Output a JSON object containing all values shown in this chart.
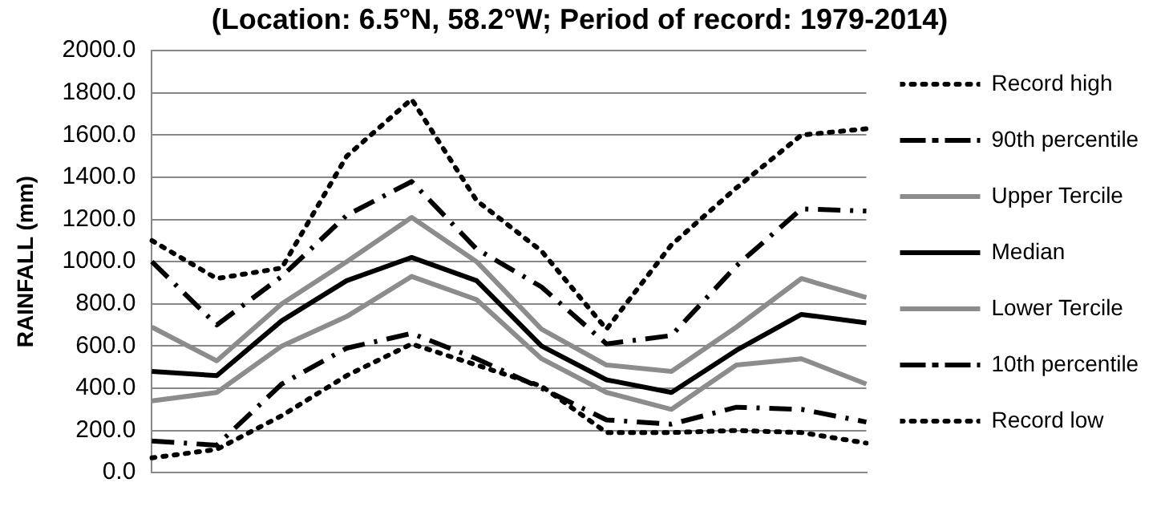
{
  "chart_data": {
    "type": "line",
    "title": "(Location: 6.5°N, 58.2°W; Period of record: 1979-2014)",
    "ylabel": "RAINFALL (mm)",
    "categories": [
      null,
      null,
      null,
      null,
      null,
      null,
      null,
      null,
      null,
      null,
      null,
      null
    ],
    "series": [
      {
        "name": "Record high",
        "color": "#000000",
        "line_style": "dotted",
        "values": [
          1100,
          920,
          970,
          1500,
          1770,
          1290,
          1050,
          680,
          1080,
          1350,
          1600,
          1630
        ]
      },
      {
        "name": "90th percentile",
        "color": "#000000",
        "line_style": "dashdot",
        "values": [
          1000,
          700,
          930,
          1220,
          1380,
          1060,
          880,
          610,
          650,
          980,
          1250,
          1240
        ]
      },
      {
        "name": "Upper Tercile",
        "color": "#8c8c8c",
        "line_style": "solid",
        "values": [
          690,
          530,
          800,
          1000,
          1210,
          1000,
          680,
          510,
          480,
          690,
          920,
          830
        ]
      },
      {
        "name": "Median",
        "color": "#000000",
        "line_style": "solid",
        "values": [
          480,
          460,
          720,
          910,
          1020,
          910,
          600,
          440,
          380,
          580,
          750,
          710
        ]
      },
      {
        "name": "Lower Tercile",
        "color": "#8c8c8c",
        "line_style": "solid",
        "values": [
          340,
          380,
          600,
          740,
          930,
          820,
          540,
          380,
          300,
          510,
          540,
          420
        ]
      },
      {
        "name": "10th percentile",
        "color": "#000000",
        "line_style": "dashdot",
        "values": [
          150,
          130,
          420,
          590,
          660,
          540,
          400,
          250,
          230,
          310,
          300,
          240
        ]
      },
      {
        "name": "Record low",
        "color": "#000000",
        "line_style": "dotted",
        "values": [
          70,
          110,
          270,
          460,
          610,
          510,
          410,
          190,
          190,
          200,
          190,
          140
        ]
      }
    ],
    "ylim": [
      0,
      2000
    ],
    "yticks": [
      {
        "value": 0,
        "label": "0.0"
      },
      {
        "value": 200,
        "label": "200.0"
      },
      {
        "value": 400,
        "label": "400.0"
      },
      {
        "value": 600,
        "label": "600.0"
      },
      {
        "value": 800,
        "label": "800.0"
      },
      {
        "value": 1000,
        "label": "1000.0"
      },
      {
        "value": 1200,
        "label": "1200.0"
      },
      {
        "value": 1400,
        "label": "1400.0"
      },
      {
        "value": 1600,
        "label": "1600.0"
      },
      {
        "value": 1800,
        "label": "1800.0"
      },
      {
        "value": 2000,
        "label": "2000.0"
      }
    ],
    "grid": "y",
    "legend": "right",
    "marker": "none"
  }
}
